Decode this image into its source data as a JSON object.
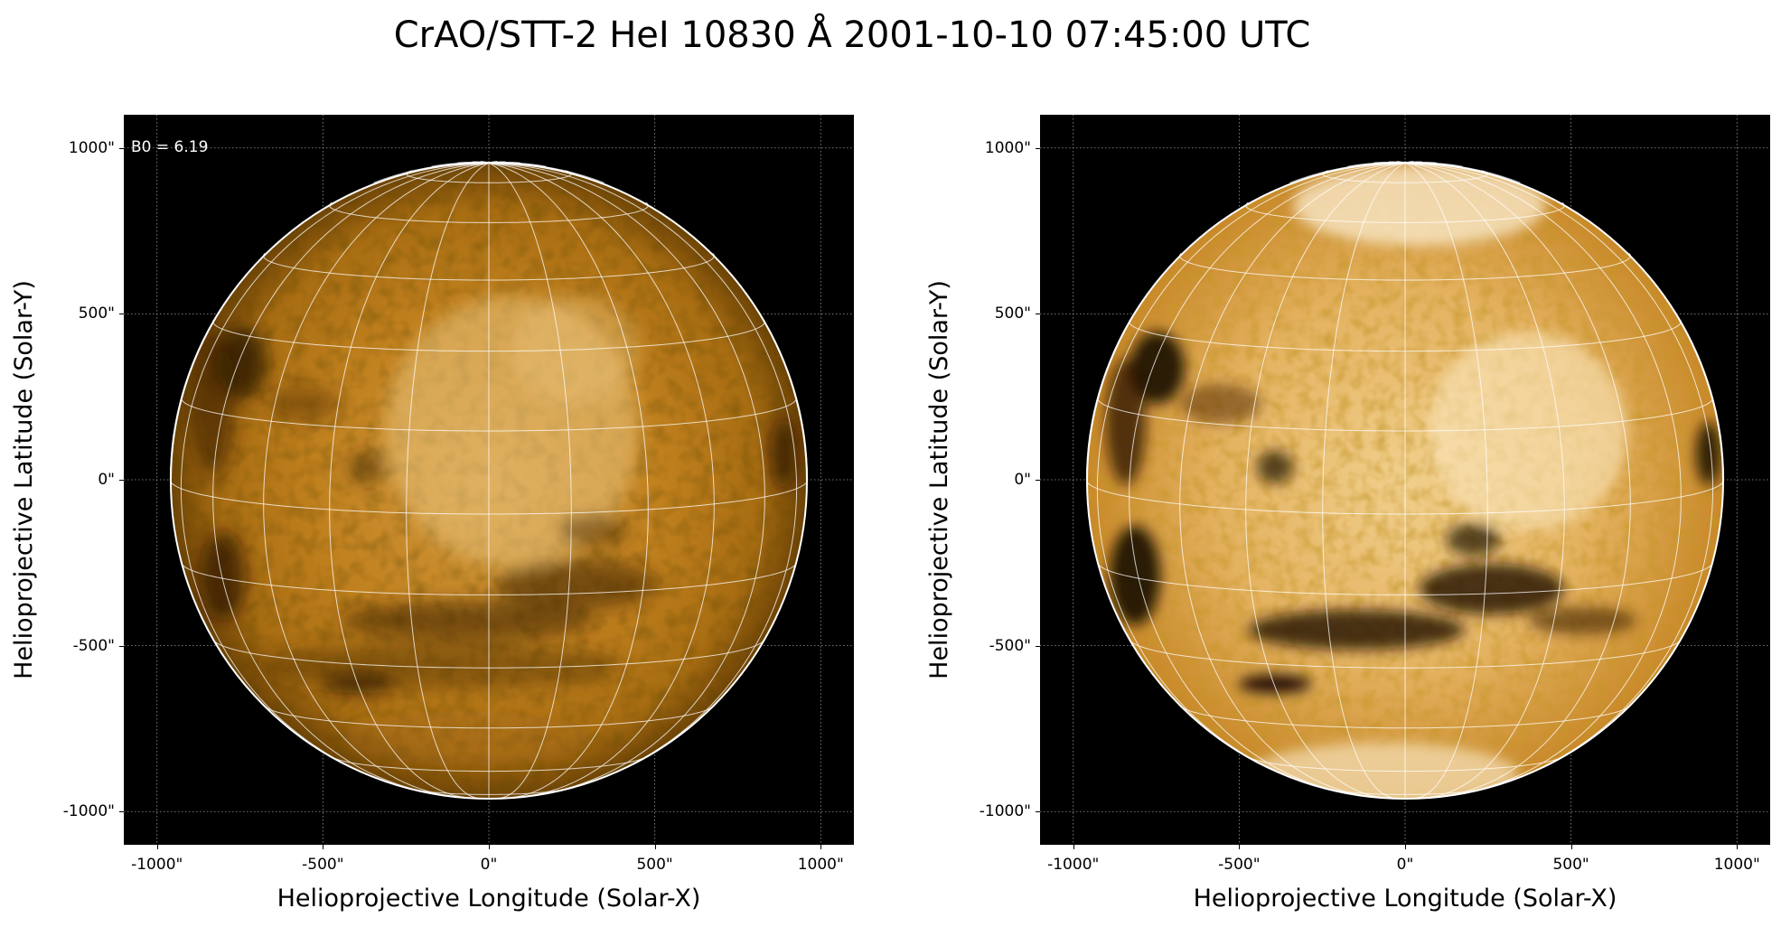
{
  "figure": {
    "title": "CrAO/STT-2 HeI 10830 Å 2001-10-10 07:45:00 UTC"
  },
  "panels": [
    {
      "annotation": "B0 = 6.19",
      "xlabel": "Helioprojective Longitude (Solar-X)",
      "ylabel": "Helioprojective Latitude (Solar-Y)",
      "xticks": [
        "-1000\"",
        "-500\"",
        "0\"",
        "500\"",
        "1000\""
      ],
      "yticks": [
        "1000\"",
        "500\"",
        "0\"",
        "-500\"",
        "-1000\""
      ],
      "xlim": [
        -1100,
        1100
      ],
      "ylim": [
        -1100,
        1100
      ],
      "solar_radius_arcsec": 960,
      "b0_deg": 6.19,
      "colormap": "orange",
      "contrast": "normal"
    },
    {
      "annotation": "",
      "xlabel": "Helioprojective Longitude (Solar-X)",
      "ylabel": "Helioprojective Latitude (Solar-Y)",
      "xticks": [
        "-1000\"",
        "-500\"",
        "0\"",
        "500\"",
        "1000\""
      ],
      "yticks": [
        "1000\"",
        "500\"",
        "0\"",
        "-500\"",
        "-1000\""
      ],
      "xlim": [
        -1100,
        1100
      ],
      "ylim": [
        -1100,
        1100
      ],
      "solar_radius_arcsec": 960,
      "b0_deg": 6.19,
      "colormap": "orange",
      "contrast": "enhanced"
    }
  ],
  "colors": {
    "background": "#000000",
    "disk_dark": "#3a2200",
    "disk_mid": "#c27e14",
    "disk_bright": "#f5d9a0",
    "grid": "#ffffff"
  }
}
